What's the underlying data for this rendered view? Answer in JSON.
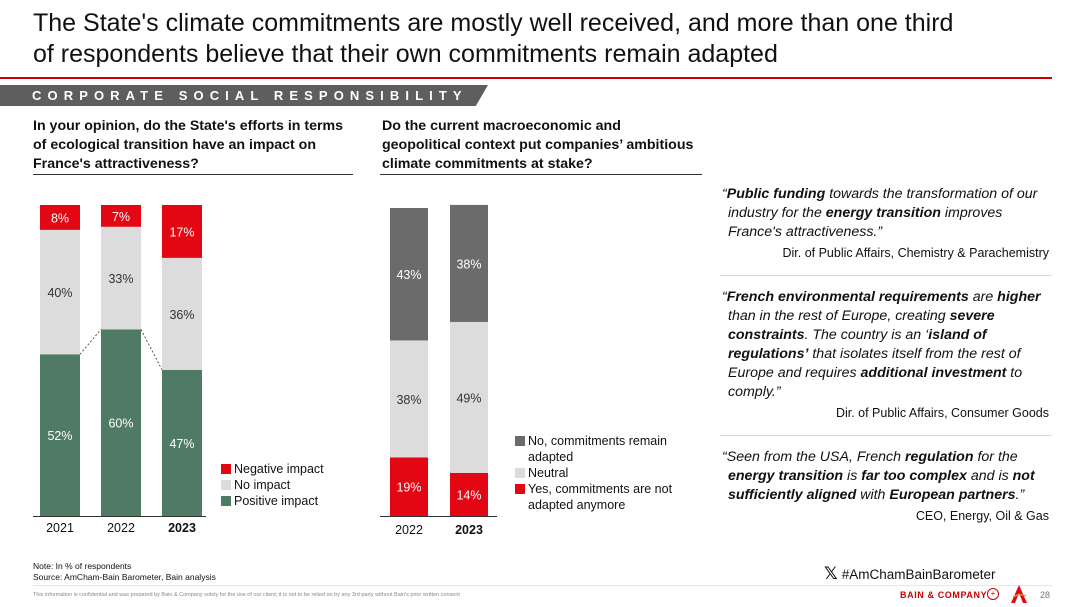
{
  "title": {
    "line1": "The State's climate commitments are mostly well received, and more than one third",
    "line2": "of respondents believe that their own commitments remain adapted"
  },
  "section": {
    "label": "CORPORATE SOCIAL RESPONSIBILITY"
  },
  "questions": {
    "q1": "In your opinion, do the State's efforts in terms of ecological transition have an impact on France's attractiveness?",
    "q2": "Do the current macroeconomic and geopolitical context put companies’ ambitious climate commitments at stake?"
  },
  "chart_data": [
    {
      "type": "bar",
      "stacked": true,
      "categories": [
        "2021",
        "2022",
        "2023"
      ],
      "bold_categories": [
        "2023"
      ],
      "series": [
        {
          "name": "Positive impact",
          "color": "#4f7a64",
          "values": [
            52,
            60,
            47
          ]
        },
        {
          "name": "No impact",
          "color": "#dcdcdc",
          "values": [
            40,
            33,
            36
          ]
        },
        {
          "name": "Negative impact",
          "color": "#e30613",
          "values": [
            8,
            7,
            17
          ]
        }
      ],
      "labels": [
        [
          "52%",
          "60%",
          "47%"
        ],
        [
          "40%",
          "33%",
          "36%"
        ],
        [
          "8%",
          "7%",
          "17%"
        ]
      ],
      "ylim": [
        0,
        100
      ],
      "legend_order": [
        "Negative impact",
        "No impact",
        "Positive impact"
      ]
    },
    {
      "type": "bar",
      "stacked": true,
      "categories": [
        "2022",
        "2023"
      ],
      "bold_categories": [
        "2023"
      ],
      "series": [
        {
          "name": "Yes, commitments are not adapted anymore",
          "color": "#e30613",
          "values": [
            19,
            14
          ]
        },
        {
          "name": "Neutral",
          "color": "#dcdcdc",
          "values": [
            38,
            49
          ]
        },
        {
          "name": "No, commitments remain adapted",
          "color": "#6b6b6b",
          "values": [
            43,
            38
          ]
        }
      ],
      "labels": [
        [
          "19%",
          "14%"
        ],
        [
          "38%",
          "49%"
        ],
        [
          "43%",
          "38%"
        ]
      ],
      "ylim": [
        0,
        100
      ]
    }
  ],
  "legend1": [
    {
      "label": "Negative impact",
      "color": "#e30613"
    },
    {
      "label": "No impact",
      "color": "#dcdcdc"
    },
    {
      "label": "Positive impact",
      "color": "#4f7a64"
    }
  ],
  "legend2": [
    {
      "label": "No, commitments remain adapted",
      "color": "#6b6b6b"
    },
    {
      "label": "Neutral",
      "color": "#dcdcdc"
    },
    {
      "label": "Yes, commitments are not adapted anymore",
      "color": "#e30613"
    }
  ],
  "quotes": [
    {
      "attribution": "Dir. of Public Affairs, Chemistry & Parachemistry",
      "segments": [
        {
          "t": "“",
          "b": false
        },
        {
          "t": "Public funding",
          "b": true
        },
        {
          "t": " towards the transformation of our industry for the ",
          "b": false
        },
        {
          "t": "energy transition",
          "b": true
        },
        {
          "t": " improves France's attractiveness.”",
          "b": false
        }
      ]
    },
    {
      "attribution": "Dir. of Public Affairs, Consumer Goods",
      "segments": [
        {
          "t": "“",
          "b": false
        },
        {
          "t": "French environmental requirements",
          "b": true
        },
        {
          "t": " are ",
          "b": false
        },
        {
          "t": "higher",
          "b": true
        },
        {
          "t": " than in the rest of Europe, creating ",
          "b": false
        },
        {
          "t": "severe constraints",
          "b": true
        },
        {
          "t": ". The country is an ‘",
          "b": false
        },
        {
          "t": "island of regulations’",
          "b": true
        },
        {
          "t": " that isolates itself from the rest of Europe and requires ",
          "b": false
        },
        {
          "t": "additional investment",
          "b": true
        },
        {
          "t": " to comply.”",
          "b": false
        }
      ]
    },
    {
      "attribution": "CEO, Energy, Oil & Gas",
      "segments": [
        {
          "t": "“Seen from the USA, French ",
          "b": false
        },
        {
          "t": "regulation",
          "b": true
        },
        {
          "t": " for the ",
          "b": false
        },
        {
          "t": "energy transition",
          "b": true
        },
        {
          "t": " is ",
          "b": false
        },
        {
          "t": "far too complex",
          "b": true
        },
        {
          "t": " and is ",
          "b": false
        },
        {
          "t": "not sufficiently aligned",
          "b": true
        },
        {
          "t": " with ",
          "b": false
        },
        {
          "t": "European partners",
          "b": true
        },
        {
          "t": ".”",
          "b": false
        }
      ]
    }
  ],
  "footer": {
    "note": "Note: In % of respondents",
    "source": "Source: AmCham-Bain Barometer, Bain analysis",
    "hashtag": "#AmChamBainBarometer",
    "x_icon": "x-logo-icon",
    "disclaimer": "This information is confidential and was prepared by Bain & Company solely for the use of our client; it is not to be relied on by any 3rd party without Bain's prior written consent",
    "brand": "BAIN & COMPANY",
    "page": "28"
  },
  "colors": {
    "accent": "#cc0000",
    "band": "#5e5e5e"
  }
}
